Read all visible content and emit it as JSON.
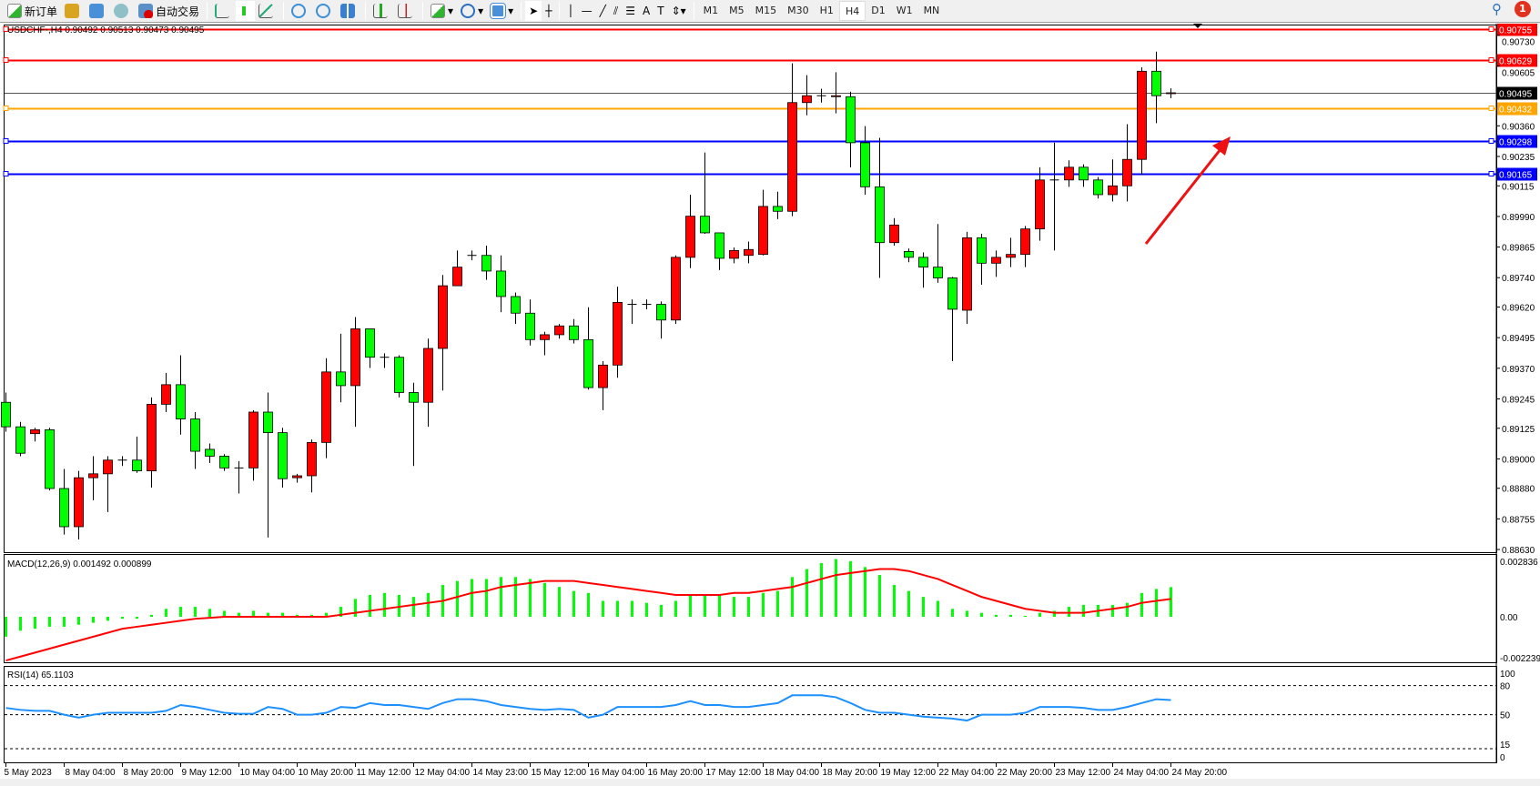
{
  "toolbar": {
    "new_order": "新订单",
    "auto_trading": "自动交易",
    "icons": [
      "new-order-icon",
      "market-watch-icon",
      "navigator-icon",
      "signals-icon",
      "auto-trading-icon",
      "bar-chart-icon",
      "candlestick-icon",
      "line-chart-icon",
      "zoom-in-icon",
      "zoom-out-icon",
      "tile-windows-icon",
      "auto-scroll-icon",
      "chart-shift-icon",
      "indicators-icon",
      "periods-icon",
      "templates-icon",
      "cursor-icon",
      "crosshair-icon",
      "vertical-line-icon",
      "horizontal-line-icon",
      "trendline-icon",
      "equidistant-channel-icon",
      "fibonacci-icon",
      "text-icon",
      "text-label-icon",
      "arrows-icon"
    ],
    "timeframes": [
      "M1",
      "M5",
      "M15",
      "M30",
      "H1",
      "H4",
      "D1",
      "W1",
      "MN"
    ],
    "active_timeframe": "H4",
    "notification_count": "1"
  },
  "chart": {
    "header": "USDCHF-,H4  0.90492 0.90513 0.90473 0.90495",
    "colors": {
      "bull": "#ff0000",
      "bear": "#00ff00",
      "macd_hist": "#00ff00",
      "signal": "#ff0000",
      "rsi": "#1e90ff",
      "arrow": "#ee1111"
    },
    "price_ticks": [
      "0.90730",
      "0.90605",
      "0.90360",
      "0.90235",
      "0.90115",
      "0.89990",
      "0.89865",
      "0.89740",
      "0.89620",
      "0.89495",
      "0.89370",
      "0.89245",
      "0.89125",
      "0.89000",
      "0.88880",
      "0.88755",
      "0.88630"
    ],
    "levels": [
      {
        "price": "0.90755",
        "color": "#ff0000"
      },
      {
        "price": "0.90629",
        "color": "#ff0000"
      },
      {
        "price": "0.90495",
        "color": "#000000"
      },
      {
        "price": "0.90432",
        "color": "#ffa500"
      },
      {
        "price": "0.90298",
        "color": "#0000ff"
      },
      {
        "price": "0.90165",
        "color": "#0000ff"
      }
    ],
    "time_labels": [
      "5 May 2023",
      "8 May 04:00",
      "8 May 20:00",
      "9 May 12:00",
      "10 May 04:00",
      "10 May 20:00",
      "11 May 12:00",
      "12 May 04:00",
      "14 May 23:00",
      "15 May 12:00",
      "16 May 04:00",
      "16 May 20:00",
      "17 May 12:00",
      "18 May 04:00",
      "18 May 20:00",
      "19 May 12:00",
      "22 May 04:00",
      "22 May 20:00",
      "23 May 12:00",
      "24 May 04:00",
      "24 May 20:00"
    ]
  },
  "macd": {
    "label": "MACD(12,26,9) 0.001492 0.000899",
    "ticks": [
      "0.002836",
      "0.00",
      "-0.002239"
    ]
  },
  "rsi": {
    "label": "RSI(14) 65.1103",
    "ticks": [
      "100",
      "80",
      "50",
      "15",
      "0"
    ]
  },
  "chart_data": {
    "type": "candlestick",
    "symbol": "USDCHF-",
    "timeframe": "H4",
    "ohlc": [
      [
        0.89231,
        0.89271,
        0.89111,
        0.89131
      ],
      [
        0.89131,
        0.89151,
        0.89011,
        0.89023
      ],
      [
        0.89103,
        0.89127,
        0.89071,
        0.89119
      ],
      [
        0.89119,
        0.89127,
        0.88871,
        0.88879
      ],
      [
        0.88879,
        0.88959,
        0.88691,
        0.88723
      ],
      [
        0.88723,
        0.88951,
        0.88671,
        0.88923
      ],
      [
        0.88923,
        0.89011,
        0.88831,
        0.88939
      ],
      [
        0.88939,
        0.89011,
        0.88783,
        0.88995
      ],
      [
        0.88995,
        0.89011,
        0.88971,
        0.88995
      ],
      [
        0.88995,
        0.89091,
        0.88943,
        0.88951
      ],
      [
        0.88951,
        0.89251,
        0.88883,
        0.89223
      ],
      [
        0.89223,
        0.89351,
        0.89191,
        0.89303
      ],
      [
        0.89303,
        0.89423,
        0.89099,
        0.89163
      ],
      [
        0.89163,
        0.89191,
        0.88959,
        0.89031
      ],
      [
        0.89039,
        0.89063,
        0.88983,
        0.89011
      ],
      [
        0.89011,
        0.89019,
        0.88951,
        0.88963
      ],
      [
        0.88963,
        0.88991,
        0.88859,
        0.88963
      ],
      [
        0.88963,
        0.89199,
        0.88911,
        0.89191
      ],
      [
        0.89191,
        0.89271,
        0.88679,
        0.89107
      ],
      [
        0.89107,
        0.89127,
        0.88883,
        0.88919
      ],
      [
        0.88923,
        0.88939,
        0.88903,
        0.88931
      ],
      [
        0.88931,
        0.89079,
        0.88863,
        0.89067
      ],
      [
        0.89067,
        0.89411,
        0.89003,
        0.89355
      ],
      [
        0.89355,
        0.89511,
        0.89231,
        0.89299
      ],
      [
        0.89299,
        0.89579,
        0.89131,
        0.89531
      ],
      [
        0.89531,
        0.89531,
        0.89371,
        0.89415
      ],
      [
        0.89415,
        0.89431,
        0.89371,
        0.89415
      ],
      [
        0.89415,
        0.89423,
        0.89251,
        0.89271
      ],
      [
        0.89271,
        0.89311,
        0.88971,
        0.89231
      ],
      [
        0.89231,
        0.89491,
        0.89131,
        0.89451
      ],
      [
        0.89451,
        0.89751,
        0.89279,
        0.89707
      ],
      [
        0.89707,
        0.89851,
        0.89707,
        0.89783
      ],
      [
        0.89831,
        0.89851,
        0.89811,
        0.89831
      ],
      [
        0.89831,
        0.89871,
        0.89731,
        0.89767
      ],
      [
        0.89767,
        0.89831,
        0.89599,
        0.89663
      ],
      [
        0.89663,
        0.89679,
        0.89551,
        0.89595
      ],
      [
        0.89595,
        0.89651,
        0.89463,
        0.89487
      ],
      [
        0.89487,
        0.89519,
        0.89423,
        0.89507
      ],
      [
        0.89507,
        0.89551,
        0.89491,
        0.89543
      ],
      [
        0.89543,
        0.89571,
        0.89471,
        0.89487
      ],
      [
        0.89487,
        0.89619,
        0.89283,
        0.89291
      ],
      [
        0.89291,
        0.89399,
        0.89199,
        0.89383
      ],
      [
        0.89383,
        0.89703,
        0.89331,
        0.89639
      ],
      [
        0.89631,
        0.89651,
        0.89551,
        0.89631
      ],
      [
        0.89631,
        0.89651,
        0.89611,
        0.89631
      ],
      [
        0.89631,
        0.89643,
        0.89491,
        0.89567
      ],
      [
        0.89567,
        0.89831,
        0.89551,
        0.89823
      ],
      [
        0.89823,
        0.90079,
        0.89779,
        0.89991
      ],
      [
        0.89991,
        0.90251,
        0.89919,
        0.89923
      ],
      [
        0.89923,
        0.89923,
        0.89771,
        0.89819
      ],
      [
        0.89819,
        0.89863,
        0.89799,
        0.89851
      ],
      [
        0.89831,
        0.89887,
        0.89799,
        0.89855
      ],
      [
        0.89835,
        0.90099,
        0.89831,
        0.90031
      ],
      [
        0.90031,
        0.90091,
        0.89979,
        0.90011
      ],
      [
        0.90011,
        0.90615,
        0.89991,
        0.90455
      ],
      [
        0.90455,
        0.90567,
        0.90403,
        0.90483
      ],
      [
        0.90483,
        0.90511,
        0.90455,
        0.90483
      ],
      [
        0.90479,
        0.90579,
        0.90411,
        0.90483
      ],
      [
        0.90479,
        0.90499,
        0.90191,
        0.90291
      ],
      [
        0.90291,
        0.90359,
        0.90079,
        0.90111
      ],
      [
        0.90111,
        0.90311,
        0.89739,
        0.89883
      ],
      [
        0.89883,
        0.89983,
        0.89871,
        0.89955
      ],
      [
        0.89847,
        0.89859,
        0.89803,
        0.89823
      ],
      [
        0.89823,
        0.89843,
        0.89699,
        0.89783
      ],
      [
        0.89783,
        0.89959,
        0.89719,
        0.89739
      ],
      [
        0.89739,
        0.89743,
        0.89399,
        0.89611
      ],
      [
        0.89607,
        0.89927,
        0.89551,
        0.89903
      ],
      [
        0.89903,
        0.89919,
        0.89711,
        0.89799
      ],
      [
        0.89799,
        0.89851,
        0.89743,
        0.89823
      ],
      [
        0.89823,
        0.89903,
        0.89783,
        0.89835
      ],
      [
        0.89835,
        0.89951,
        0.89783,
        0.89939
      ],
      [
        0.89939,
        0.90191,
        0.89891,
        0.90139
      ],
      [
        0.90139,
        0.90291,
        0.89851,
        0.90139
      ],
      [
        0.90139,
        0.90219,
        0.90111,
        0.90191
      ],
      [
        0.90191,
        0.90203,
        0.90111,
        0.90139
      ],
      [
        0.90139,
        0.90151,
        0.90063,
        0.90079
      ],
      [
        0.90079,
        0.90223,
        0.90051,
        0.90115
      ],
      [
        0.90115,
        0.90367,
        0.90051,
        0.90223
      ],
      [
        0.90223,
        0.90599,
        0.90159,
        0.90583
      ],
      [
        0.90583,
        0.90663,
        0.90371,
        0.90483
      ],
      [
        0.90492,
        0.90513,
        0.90473,
        0.90495
      ]
    ],
    "price_range": [
      0.8863,
      0.90755
    ],
    "macd_hist": [
      -0.001,
      -0.0007,
      -0.0006,
      -0.0005,
      -0.0005,
      -0.0004,
      -0.0003,
      -0.0002,
      -0.0001,
      -0.0001,
      0.0001,
      0.0004,
      0.0005,
      0.0005,
      0.0004,
      0.0003,
      0.0002,
      0.0003,
      0.0002,
      0.0002,
      0.0001,
      0.0001,
      0.0002,
      0.0005,
      0.0009,
      0.0011,
      0.0012,
      0.0011,
      0.001,
      0.0012,
      0.0016,
      0.0018,
      0.0019,
      0.0019,
      0.002,
      0.002,
      0.0019,
      0.0017,
      0.0015,
      0.0013,
      0.0012,
      0.0008,
      0.0008,
      0.0008,
      0.0007,
      0.0006,
      0.0008,
      0.0011,
      0.0011,
      0.0011,
      0.001,
      0.001,
      0.0012,
      0.0013,
      0.002,
      0.0024,
      0.0027,
      0.0029,
      0.0028,
      0.0025,
      0.0021,
      0.0016,
      0.0013,
      0.001,
      0.0008,
      0.0004,
      0.0003,
      0.0002,
      0.0001,
      0.0001,
      5e-05,
      0.0002,
      0.0003,
      0.0005,
      0.0006,
      0.0006,
      0.0006,
      0.0007,
      0.0012,
      0.0014,
      0.001492
    ],
    "macd_signal": [
      -0.0022,
      -0.002,
      -0.0018,
      -0.0016,
      -0.0014,
      -0.0012,
      -0.001,
      -0.0008,
      -0.0006,
      -0.0005,
      -0.0004,
      -0.0003,
      -0.0002,
      -0.0001,
      -5e-05,
      0,
      0,
      0,
      0,
      0,
      0,
      0,
      0,
      0.0001,
      0.0002,
      0.0003,
      0.0004,
      0.0005,
      0.0006,
      0.0007,
      0.0008,
      0.001,
      0.0012,
      0.0013,
      0.0015,
      0.0016,
      0.0017,
      0.0018,
      0.0018,
      0.0018,
      0.0017,
      0.0016,
      0.0015,
      0.0014,
      0.0013,
      0.0012,
      0.0011,
      0.0011,
      0.0011,
      0.0011,
      0.0012,
      0.0012,
      0.0013,
      0.0014,
      0.0015,
      0.0017,
      0.0019,
      0.0021,
      0.0022,
      0.0023,
      0.0024,
      0.0024,
      0.0023,
      0.0021,
      0.0019,
      0.0016,
      0.0013,
      0.001,
      0.0008,
      0.0006,
      0.0004,
      0.0003,
      0.0002,
      0.0002,
      0.0002,
      0.0003,
      0.0004,
      0.0005,
      0.0007,
      0.0008,
      0.000899
    ],
    "macd_range": [
      -0.002239,
      0.002836
    ],
    "rsi": [
      57,
      55,
      54,
      54,
      50,
      47,
      50,
      52,
      52,
      52,
      52,
      54,
      60,
      58,
      55,
      52,
      51,
      51,
      58,
      56,
      50,
      50,
      52,
      58,
      57,
      62,
      60,
      60,
      58,
      56,
      62,
      66,
      66,
      64,
      60,
      58,
      56,
      55,
      56,
      55,
      47,
      50,
      58,
      58,
      58,
      58,
      60,
      64,
      60,
      60,
      58,
      58,
      60,
      62,
      70,
      70,
      70,
      68,
      62,
      55,
      52,
      52,
      50,
      48,
      47,
      46,
      44,
      50,
      50,
      50,
      52,
      58,
      58,
      58,
      57,
      55,
      55,
      58,
      62,
      66,
      65.1103
    ],
    "rsi_levels": [
      80,
      50,
      15
    ],
    "rsi_range": [
      0,
      100
    ]
  }
}
